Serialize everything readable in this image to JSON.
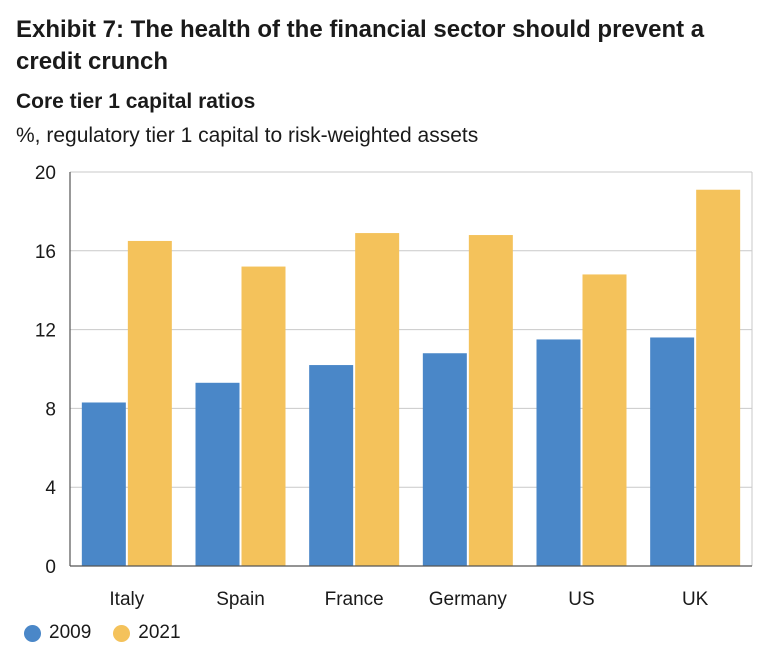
{
  "title": "Exhibit 7: The health of the financial sector should prevent a credit crunch",
  "subtitle": "Core tier 1 capital ratios",
  "units": "%, regulatory tier 1 capital to risk-weighted assets",
  "colors": {
    "series_2009": "#4a87c8",
    "series_2021": "#f4c25b",
    "grid": "#c9c9c9",
    "axis": "#555555"
  },
  "chart_data": {
    "type": "bar",
    "categories": [
      "Italy",
      "Spain",
      "France",
      "Germany",
      "US",
      "UK"
    ],
    "series": [
      {
        "name": "2009",
        "values": [
          8.3,
          9.3,
          10.2,
          10.8,
          11.5,
          11.6
        ]
      },
      {
        "name": "2021",
        "values": [
          16.5,
          15.2,
          16.9,
          16.8,
          14.8,
          19.1
        ]
      }
    ],
    "ylim": [
      0,
      20
    ],
    "yticks": [
      "0",
      "4",
      "8",
      "12",
      "16",
      "20"
    ],
    "grid": true,
    "legend": "bottom-left"
  }
}
